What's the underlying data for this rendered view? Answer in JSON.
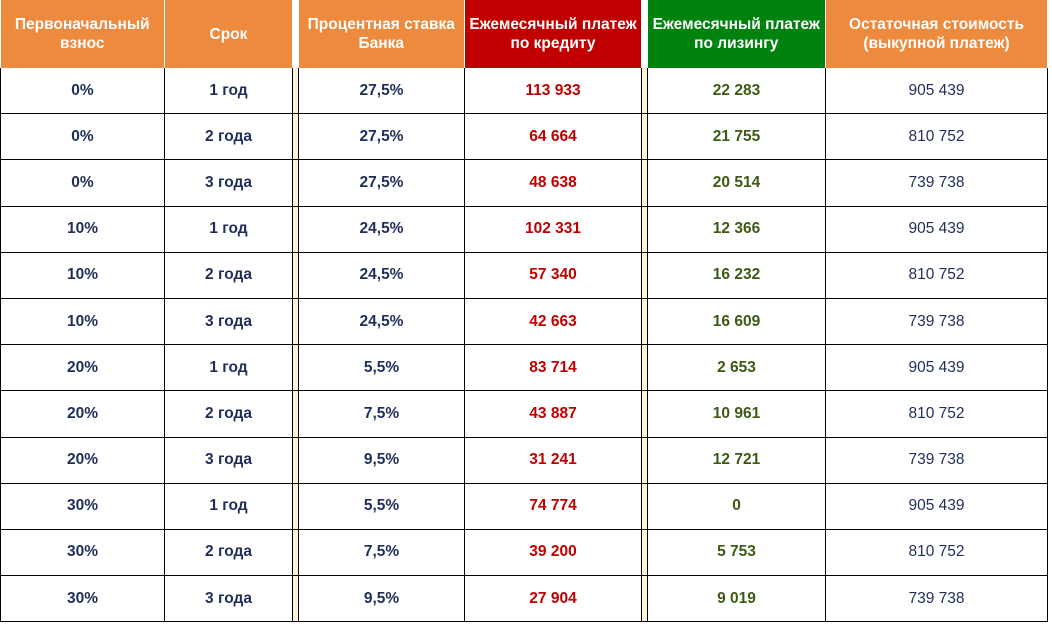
{
  "table": {
    "headers": {
      "down_payment": "Первоначальный взнос",
      "term": "Срок",
      "rate": "Процентная ставка Банка",
      "credit_payment": "Ежемесячный платеж по кредиту",
      "lease_payment": "Ежемесячный платеж по лизингу",
      "residual": "Остаточная стоимость (выкупной платеж)"
    },
    "rows": [
      {
        "down": "0%",
        "term": "1 год",
        "rate": "27,5%",
        "credit": "113 933",
        "lease": "22 283",
        "residual": "905 439"
      },
      {
        "down": "0%",
        "term": "2 года",
        "rate": "27,5%",
        "credit": "64 664",
        "lease": "21 755",
        "residual": "810 752"
      },
      {
        "down": "0%",
        "term": "3 года",
        "rate": "27,5%",
        "credit": "48 638",
        "lease": "20 514",
        "residual": "739 738"
      },
      {
        "down": "10%",
        "term": "1 год",
        "rate": "24,5%",
        "credit": "102 331",
        "lease": "12 366",
        "residual": "905 439"
      },
      {
        "down": "10%",
        "term": "2 года",
        "rate": "24,5%",
        "credit": "57 340",
        "lease": "16 232",
        "residual": "810 752"
      },
      {
        "down": "10%",
        "term": "3 года",
        "rate": "24,5%",
        "credit": "42 663",
        "lease": "16 609",
        "residual": "739 738"
      },
      {
        "down": "20%",
        "term": "1 год",
        "rate": "5,5%",
        "credit": "83 714",
        "lease": "2 653",
        "residual": "905 439"
      },
      {
        "down": "20%",
        "term": "2 года",
        "rate": "7,5%",
        "credit": "43 887",
        "lease": "10 961",
        "residual": "810 752"
      },
      {
        "down": "20%",
        "term": "3 года",
        "rate": "9,5%",
        "credit": "31 241",
        "lease": "12 721",
        "residual": "739 738"
      },
      {
        "down": "30%",
        "term": "1 год",
        "rate": "5,5%",
        "credit": "74 774",
        "lease": "0",
        "residual": "905 439"
      },
      {
        "down": "30%",
        "term": "2 года",
        "rate": "7,5%",
        "credit": "39 200",
        "lease": "5 753",
        "residual": "810 752"
      },
      {
        "down": "30%",
        "term": "3 года",
        "rate": "9,5%",
        "credit": "27 904",
        "lease": "9 019",
        "residual": "739 738"
      }
    ]
  },
  "colors": {
    "header_orange": "#ee8a3e",
    "header_red": "#c00000",
    "header_green": "#00820f",
    "credit_text": "#c00000",
    "lease_text": "#3c5a14",
    "body_text": "#1f2e5a"
  }
}
